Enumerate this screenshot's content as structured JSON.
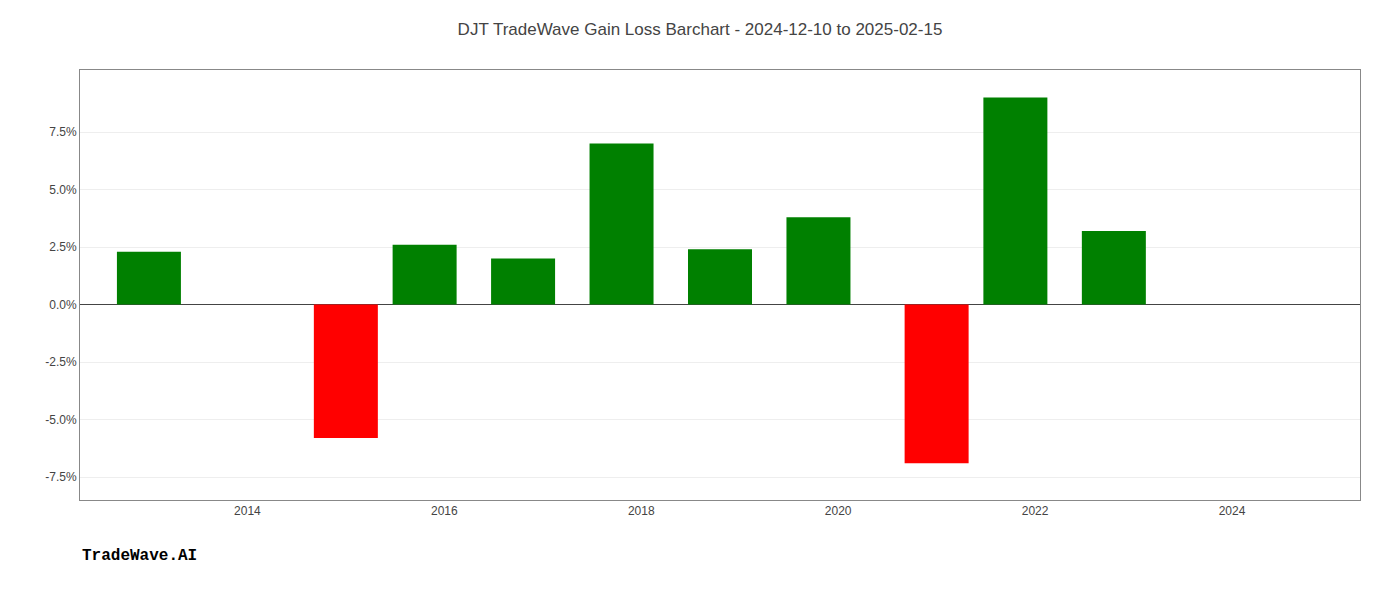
{
  "chart_data": {
    "type": "bar",
    "title": "DJT TradeWave Gain Loss Barchart - 2024-12-10 to 2025-02-15",
    "annotations": [
      "TradeWave.AI"
    ],
    "x": [
      2013.0,
      2015.0,
      2015.8,
      2016.8,
      2017.8,
      2018.8,
      2019.8,
      2021.0,
      2021.8,
      2022.8
    ],
    "values": [
      2.3,
      -5.8,
      2.6,
      2.0,
      7.0,
      2.4,
      3.8,
      -6.9,
      9.0,
      3.2
    ],
    "colors": [
      "#008000",
      "#ff0000",
      "#008000",
      "#008000",
      "#008000",
      "#008000",
      "#008000",
      "#ff0000",
      "#008000",
      "#008000"
    ],
    "xlim": [
      2012.3,
      2025.3
    ],
    "xticks": [
      2014,
      2016,
      2018,
      2020,
      2022,
      2024
    ],
    "ylim": [
      -8.5,
      10.2
    ],
    "yticks": [
      {
        "value": -7.5,
        "label": "-7.5%"
      },
      {
        "value": -5.0,
        "label": "-5.0%"
      },
      {
        "value": -2.5,
        "label": "-2.5%"
      },
      {
        "value": 0.0,
        "label": "0.0%"
      },
      {
        "value": 2.5,
        "label": "2.5%"
      },
      {
        "value": 5.0,
        "label": "5.0%"
      },
      {
        "value": 7.5,
        "label": "7.5%"
      }
    ],
    "grid": true
  }
}
